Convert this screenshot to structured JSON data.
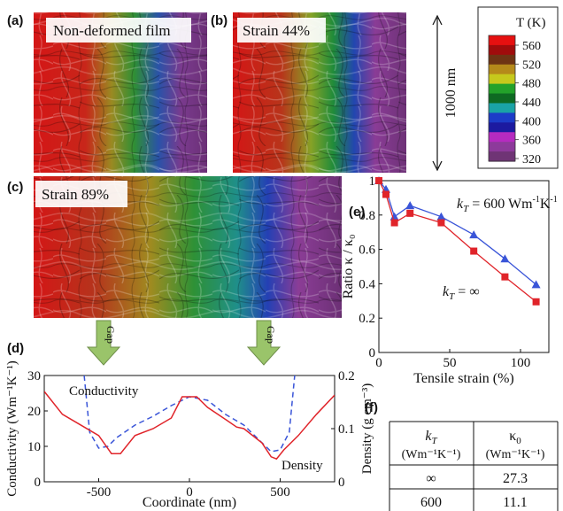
{
  "panels": {
    "a": {
      "letter": "(a)",
      "label": "Non-deformed film"
    },
    "b": {
      "letter": "(b)",
      "label": "Strain 44%"
    },
    "c": {
      "letter": "(c)",
      "label": "Strain 89%"
    },
    "d": {
      "letter": "(d)"
    },
    "e": {
      "letter": "(e)"
    },
    "f": {
      "letter": "(f)"
    }
  },
  "colorbar": {
    "title": "T (K)",
    "ticks": [
      "560",
      "520",
      "480",
      "440",
      "400",
      "360",
      "320"
    ],
    "colors": [
      "#e61010",
      "#a00c0c",
      "#6e3414",
      "#b58a1a",
      "#c6c91c",
      "#23a22a",
      "#0e6a22",
      "#1aa3a6",
      "#1c3cc8",
      "#1c1aa0",
      "#b62bc0",
      "#8d3a9b",
      "#6f3475"
    ]
  },
  "scale_bar": {
    "label": "1000 nm"
  },
  "gap_labels": [
    "Gap",
    "Gap"
  ],
  "chart_data": [
    {
      "type": "line",
      "panel": "d",
      "xlabel": "Coordinate (nm)",
      "ylabel": "Conductivity (Wm⁻¹K⁻¹)",
      "y2label": "Density (g cm⁻³)",
      "xlim": [
        -800,
        800
      ],
      "ylim": [
        0,
        30
      ],
      "y2lim": [
        0,
        0.2
      ],
      "x_ticks": [
        "-500",
        "0",
        "500"
      ],
      "y_ticks": [
        "0",
        "10",
        "20",
        "30"
      ],
      "y2_ticks": [
        "0",
        "0.1",
        "0.2"
      ],
      "series": [
        {
          "name": "Conductivity",
          "style": "dashed",
          "color": "#3a55d8",
          "axis": "left",
          "x": [
            -580,
            -550,
            -500,
            -450,
            -400,
            -300,
            -200,
            -100,
            0,
            100,
            200,
            300,
            400,
            450,
            500,
            550,
            580
          ],
          "y": [
            30,
            14,
            9.5,
            10,
            12.5,
            16,
            18.5,
            21.5,
            24,
            23,
            19,
            16,
            11,
            8.5,
            9,
            14,
            30
          ]
        },
        {
          "name": "Density",
          "style": "solid",
          "color": "#e0242a",
          "axis": "right",
          "x": [
            -800,
            -700,
            -600,
            -500,
            -430,
            -380,
            -300,
            -200,
            -100,
            -40,
            40,
            100,
            200,
            260,
            300,
            400,
            450,
            480,
            520,
            600,
            700,
            800
          ],
          "y": [
            0.17,
            0.127,
            0.107,
            0.087,
            0.053,
            0.053,
            0.087,
            0.1,
            0.12,
            0.16,
            0.16,
            0.14,
            0.117,
            0.103,
            0.1,
            0.073,
            0.047,
            0.043,
            0.06,
            0.087,
            0.127,
            0.163
          ]
        }
      ]
    },
    {
      "type": "line",
      "panel": "e",
      "xlabel": "Tensile strain (%)",
      "ylabel": "Ratio κ / κ₀",
      "xlim": [
        0,
        120
      ],
      "ylim": [
        0,
        1
      ],
      "x_ticks": [
        "0",
        "50",
        "100"
      ],
      "y_ticks": [
        "0",
        "0.2",
        "0.4",
        "0.6",
        "0.8",
        "1"
      ],
      "series": [
        {
          "name": "kT = 600 Wm⁻¹K⁻¹",
          "marker": "triangle",
          "color": "#3a55d8",
          "x": [
            0,
            5,
            11,
            22,
            44,
            67,
            89,
            111
          ],
          "y": [
            1.0,
            0.95,
            0.79,
            0.855,
            0.79,
            0.685,
            0.545,
            0.395
          ]
        },
        {
          "name": "kT = ∞",
          "marker": "square",
          "color": "#e0242a",
          "x": [
            0,
            5,
            11,
            22,
            44,
            67,
            89,
            111
          ],
          "y": [
            1.0,
            0.92,
            0.755,
            0.81,
            0.755,
            0.59,
            0.44,
            0.295
          ]
        }
      ],
      "annotations": {
        "kT600": {
          "base": "k",
          "sub": "T",
          "value": " = 600 Wm",
          "exp1": "-1",
          "mid": "K",
          "exp2": "-1"
        },
        "kTinf": {
          "base": "k",
          "sub": "T",
          "value": " = ∞"
        }
      }
    }
  ],
  "table": {
    "headers": [
      {
        "top_base": "k",
        "top_sub": "T",
        "bottom": "(Wm⁻¹K⁻¹)"
      },
      {
        "top_base": "κ",
        "top_sub": "0",
        "bottom": "(Wm⁻¹K⁻¹)"
      }
    ],
    "rows": [
      [
        "∞",
        "27.3"
      ],
      [
        "600",
        "11.1"
      ]
    ]
  }
}
